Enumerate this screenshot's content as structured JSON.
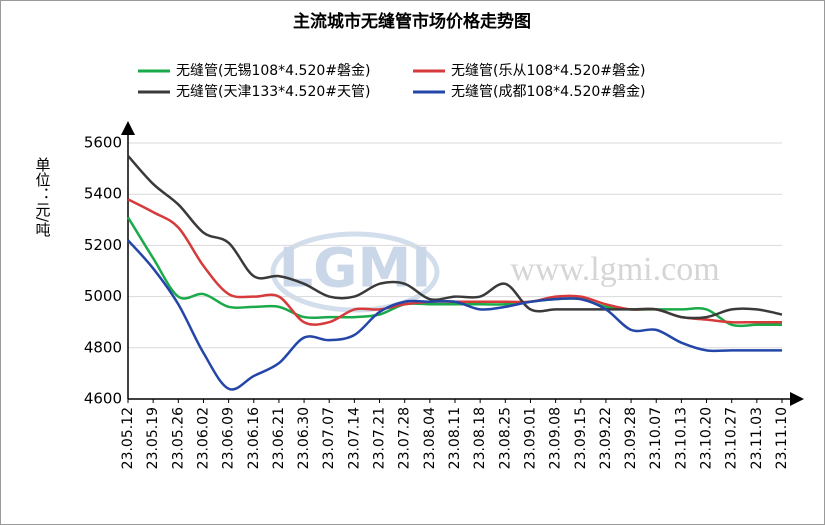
{
  "chart_data": {
    "type": "line",
    "title": "主流城市无缝管市场价格走势图",
    "y_label": "单位：元/吨",
    "watermark_logo": "LGMI",
    "watermark_url": "www.lgmi.com",
    "categories": [
      "23.05.12",
      "23.05.19",
      "23.05.26",
      "23.06.02",
      "23.06.09",
      "23.06.16",
      "23.06.21",
      "23.06.30",
      "23.07.07",
      "23.07.14",
      "23.07.21",
      "23.07.28",
      "23.08.04",
      "23.08.11",
      "23.08.18",
      "23.08.25",
      "23.09.01",
      "23.09.08",
      "23.09.15",
      "23.09.22",
      "23.09.28",
      "23.10.07",
      "23.10.13",
      "23.10.20",
      "23.10.27",
      "23.11.03",
      "23.11.10"
    ],
    "series": [
      {
        "name": "无缝管(无锡108*4.520#磐金)",
        "color": "#1aaa4a",
        "values": [
          5310,
          5150,
          5000,
          5010,
          4960,
          4960,
          4960,
          4920,
          4920,
          4920,
          4930,
          4970,
          4970,
          4970,
          4970,
          4970,
          4980,
          4990,
          4990,
          4960,
          4950,
          4950,
          4950,
          4950,
          4890,
          4890,
          4890
        ]
      },
      {
        "name": "无缝管(乐从108*4.520#磐金)",
        "color": "#d63a3a",
        "values": [
          5380,
          5330,
          5270,
          5120,
          5010,
          5000,
          5000,
          4900,
          4900,
          4950,
          4950,
          4970,
          4980,
          4980,
          4980,
          4980,
          4980,
          5000,
          5000,
          4970,
          4950,
          4950,
          4920,
          4910,
          4900,
          4900,
          4900
        ]
      },
      {
        "name": "无缝管(天津133*4.520#天管)",
        "color": "#3a3a3a",
        "values": [
          5550,
          5440,
          5360,
          5250,
          5210,
          5080,
          5080,
          5050,
          5000,
          5000,
          5050,
          5050,
          4990,
          5000,
          5000,
          5050,
          4950,
          4950,
          4950,
          4950,
          4950,
          4950,
          4920,
          4920,
          4950,
          4950,
          4930
        ]
      },
      {
        "name": "无缝管(成都108*4.520#磐金)",
        "color": "#2346a8",
        "values": [
          5220,
          5110,
          4970,
          4780,
          4640,
          4690,
          4740,
          4840,
          4830,
          4850,
          4940,
          4980,
          4980,
          4980,
          4950,
          4960,
          4980,
          4990,
          4990,
          4950,
          4870,
          4870,
          4820,
          4790,
          4790,
          4790,
          4790
        ]
      }
    ],
    "ylim": [
      4600,
      5600
    ],
    "yticks": [
      4600,
      4800,
      5000,
      5200,
      5400,
      5600
    ],
    "grid": true
  }
}
